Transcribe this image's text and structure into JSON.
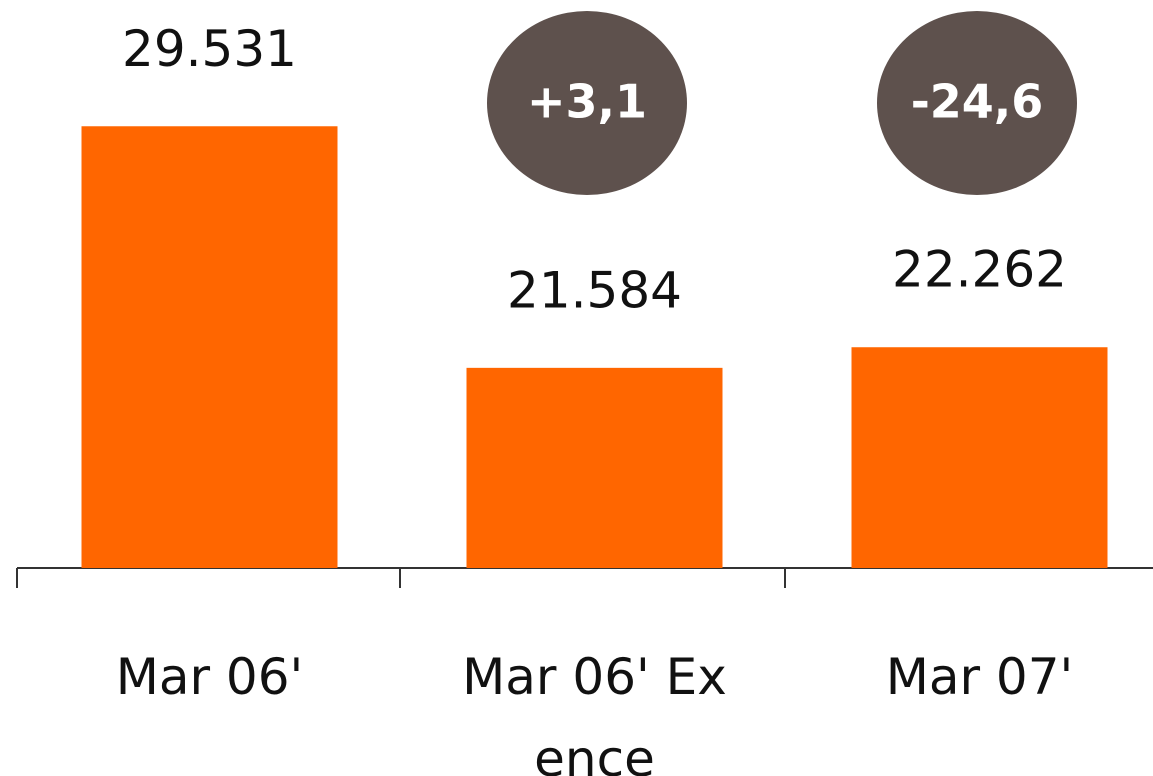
{
  "chart_data": {
    "type": "bar",
    "categories": [
      "Mar 06'",
      "Mar 06' Ex ence",
      "Mar 07'"
    ],
    "values": [
      29.531,
      21.584,
      22.262
    ],
    "color": "#ff6600",
    "ylim": [
      15,
      30
    ],
    "annotations": [
      "+3,1",
      "-24,6"
    ],
    "annotation_color": "#5e514d"
  }
}
